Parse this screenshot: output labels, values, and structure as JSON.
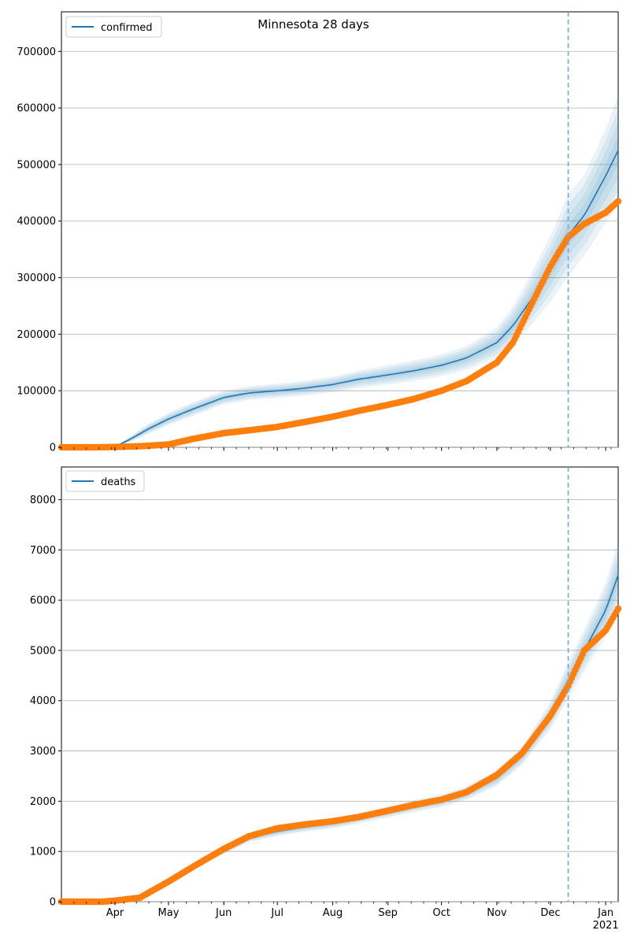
{
  "title": "Minnesota 28 days",
  "colors": {
    "model": "#1f77b4",
    "observed": "#ff7f0e",
    "band": "#1f77b4",
    "vline": "#7aa6d6",
    "grid": "#b0b0b0"
  },
  "chart_data": [
    {
      "type": "line",
      "panel": "top",
      "title": "Minnesota 28 days",
      "legend": {
        "label": "confirmed",
        "position": "top-left"
      },
      "xlim": [
        "2020-03-02",
        "2021-01-08"
      ],
      "ylim": [
        0,
        770000
      ],
      "yticks": [
        0,
        100000,
        200000,
        300000,
        400000,
        500000,
        600000,
        700000
      ],
      "grid": "y",
      "vline": "2020-12-11",
      "model": {
        "x": [
          "2020-03-02",
          "2020-03-15",
          "2020-03-25",
          "2020-04-01",
          "2020-04-10",
          "2020-04-20",
          "2020-05-01",
          "2020-05-15",
          "2020-06-01",
          "2020-06-15",
          "2020-07-01",
          "2020-07-15",
          "2020-08-01",
          "2020-08-15",
          "2020-09-01",
          "2020-09-15",
          "2020-10-01",
          "2020-10-15",
          "2020-11-01",
          "2020-11-10",
          "2020-11-20",
          "2020-12-01",
          "2020-12-11",
          "2020-12-20",
          "2021-01-01",
          "2021-01-08"
        ],
        "y": [
          0,
          0,
          0,
          1000,
          15000,
          33000,
          50000,
          68000,
          88000,
          96000,
          100000,
          104000,
          111000,
          120000,
          128000,
          135000,
          145000,
          158000,
          185000,
          215000,
          260000,
          315000,
          375000,
          410000,
          480000,
          525000
        ],
        "band_spread": [
          0,
          0,
          0,
          0.35,
          0.3,
          0.25,
          0.2,
          0.17,
          0.13,
          0.12,
          0.12,
          0.12,
          0.12,
          0.12,
          0.13,
          0.13,
          0.13,
          0.13,
          0.14,
          0.15,
          0.17,
          0.18,
          0.19,
          0.17,
          0.17,
          0.18
        ]
      },
      "observed": {
        "x": [
          "2020-03-02",
          "2020-03-20",
          "2020-04-01",
          "2020-04-15",
          "2020-05-01",
          "2020-05-15",
          "2020-06-01",
          "2020-06-15",
          "2020-07-01",
          "2020-07-15",
          "2020-08-01",
          "2020-08-15",
          "2020-09-01",
          "2020-09-15",
          "2020-10-01",
          "2020-10-15",
          "2020-11-01",
          "2020-11-10",
          "2020-11-20",
          "2020-12-01",
          "2020-12-11",
          "2020-12-20",
          "2021-01-01",
          "2021-01-08"
        ],
        "y": [
          0,
          0,
          500,
          1800,
          5000,
          15000,
          25000,
          30000,
          36000,
          44000,
          54000,
          64000,
          75000,
          85000,
          100000,
          117000,
          150000,
          185000,
          250000,
          320000,
          372000,
          395000,
          415000,
          435000
        ]
      }
    },
    {
      "type": "line",
      "panel": "bottom",
      "legend": {
        "label": "deaths",
        "position": "top-left"
      },
      "xlim": [
        "2020-03-02",
        "2021-01-08"
      ],
      "ylim": [
        0,
        8650
      ],
      "yticks": [
        0,
        1000,
        2000,
        3000,
        4000,
        5000,
        6000,
        7000,
        8000
      ],
      "grid": "y",
      "vline": "2020-12-11",
      "xtick_labels": [
        "Apr",
        "May",
        "Jun",
        "Jul",
        "Aug",
        "Sep",
        "Oct",
        "Nov",
        "Dec",
        "Jan\n2021"
      ],
      "model": {
        "x": [
          "2020-03-02",
          "2020-03-25",
          "2020-04-01",
          "2020-04-15",
          "2020-05-01",
          "2020-05-15",
          "2020-06-01",
          "2020-06-15",
          "2020-07-01",
          "2020-07-15",
          "2020-08-01",
          "2020-08-15",
          "2020-09-01",
          "2020-09-15",
          "2020-10-01",
          "2020-10-15",
          "2020-11-01",
          "2020-11-15",
          "2020-12-01",
          "2020-12-11",
          "2020-12-20",
          "2021-01-01",
          "2021-01-08"
        ],
        "y": [
          0,
          0,
          10,
          70,
          380,
          700,
          1020,
          1270,
          1400,
          1480,
          1560,
          1660,
          1790,
          1900,
          2010,
          2160,
          2460,
          2900,
          3700,
          4400,
          5000,
          5800,
          6500
        ],
        "band_spread": [
          0,
          0,
          0.2,
          0.15,
          0.1,
          0.08,
          0.07,
          0.06,
          0.06,
          0.06,
          0.06,
          0.06,
          0.06,
          0.06,
          0.06,
          0.06,
          0.06,
          0.06,
          0.07,
          0.08,
          0.08,
          0.09,
          0.1
        ]
      },
      "observed": {
        "x": [
          "2020-03-02",
          "2020-03-25",
          "2020-04-01",
          "2020-04-15",
          "2020-05-01",
          "2020-05-15",
          "2020-06-01",
          "2020-06-15",
          "2020-07-01",
          "2020-07-15",
          "2020-08-01",
          "2020-08-15",
          "2020-09-01",
          "2020-09-15",
          "2020-10-01",
          "2020-10-15",
          "2020-11-01",
          "2020-11-15",
          "2020-12-01",
          "2020-12-11",
          "2020-12-20",
          "2021-01-01",
          "2021-01-08"
        ],
        "y": [
          0,
          0,
          20,
          80,
          400,
          700,
          1050,
          1300,
          1460,
          1530,
          1600,
          1680,
          1810,
          1920,
          2030,
          2180,
          2520,
          2950,
          3700,
          4300,
          5000,
          5400,
          5830
        ]
      }
    }
  ]
}
